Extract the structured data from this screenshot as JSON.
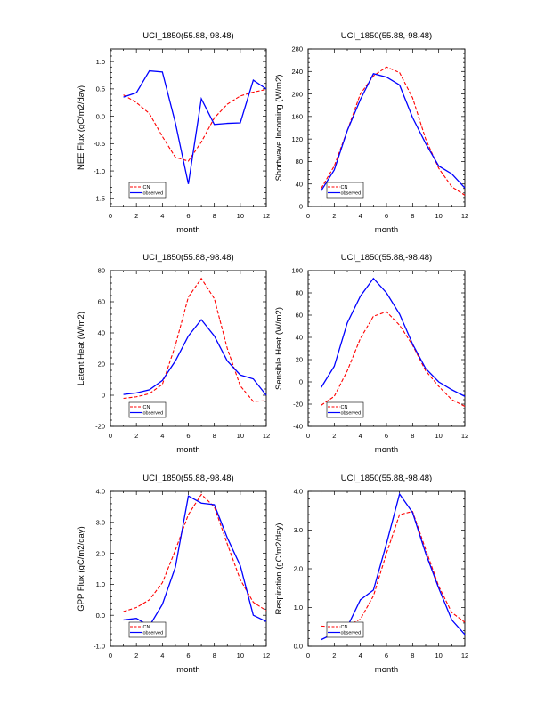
{
  "chart_data": [
    {
      "type": "line",
      "title": "UCI_1850(55.88,-98.48)",
      "xlabel": "month",
      "ylabel": "NEE Flux (gC/m2/day)",
      "xlim": [
        0,
        12
      ],
      "ylim": [
        -1.65,
        1.23
      ],
      "xticks": [
        0,
        2,
        4,
        6,
        8,
        10,
        12
      ],
      "xtick_labels": [
        "0",
        "2",
        "4",
        "6",
        "8",
        "10",
        "12"
      ],
      "yticks": [
        -1.5,
        -1.0,
        -0.5,
        0.0,
        0.5,
        1.0
      ],
      "ytick_labels": [
        "-1.5",
        "-1.0",
        "-0.5",
        "0.0",
        "0.5",
        "1.0"
      ],
      "legend": "bottom-left",
      "x": [
        1,
        2,
        3,
        4,
        5,
        6,
        7,
        8,
        9,
        10,
        11,
        12
      ],
      "series": [
        {
          "name": "CN",
          "color": "#ff0000",
          "dash": true,
          "values": [
            0.39,
            0.25,
            0.05,
            -0.37,
            -0.75,
            -0.82,
            -0.47,
            -0.03,
            0.22,
            0.37,
            0.44,
            0.49
          ]
        },
        {
          "name": "observed",
          "color": "#0000ff",
          "dash": false,
          "values": [
            0.35,
            0.43,
            0.83,
            0.81,
            -0.12,
            -1.24,
            0.32,
            -0.15,
            -0.13,
            -0.12,
            0.66,
            0.5
          ]
        }
      ]
    },
    {
      "type": "line",
      "title": "UCI_1850(55.88,-98.48)",
      "xlabel": "month",
      "ylabel": "Shortwave Incoming (W/m2)",
      "xlim": [
        0,
        12
      ],
      "ylim": [
        0,
        280
      ],
      "xticks": [
        0,
        2,
        4,
        6,
        8,
        10,
        12
      ],
      "xtick_labels": [
        "0",
        "2",
        "4",
        "6",
        "8",
        "10",
        "12"
      ],
      "yticks": [
        0,
        40,
        80,
        120,
        160,
        200,
        240,
        280
      ],
      "ytick_labels": [
        "0",
        "40",
        "80",
        "120",
        "160",
        "200",
        "240",
        "280"
      ],
      "legend": "bottom-left",
      "x": [
        1,
        2,
        3,
        4,
        5,
        6,
        7,
        8,
        9,
        10,
        11,
        12
      ],
      "series": [
        {
          "name": "CN",
          "color": "#ff0000",
          "dash": true,
          "values": [
            32,
            72,
            135,
            200,
            232,
            248,
            238,
            193,
            120,
            68,
            35,
            20
          ]
        },
        {
          "name": "observed",
          "color": "#0000ff",
          "dash": false,
          "values": [
            28,
            65,
            135,
            190,
            236,
            230,
            216,
            158,
            112,
            72,
            58,
            33
          ]
        }
      ]
    },
    {
      "type": "line",
      "title": "UCI_1850(55.88,-98.48)",
      "xlabel": "month",
      "ylabel": "Latent Heat (W/m2)",
      "xlim": [
        0,
        12
      ],
      "ylim": [
        -20,
        80
      ],
      "xticks": [
        0,
        2,
        4,
        6,
        8,
        10,
        12
      ],
      "xtick_labels": [
        "0",
        "2",
        "4",
        "6",
        "8",
        "10",
        "12"
      ],
      "yticks": [
        -20,
        0,
        20,
        40,
        60,
        80
      ],
      "ytick_labels": [
        "-20",
        "0",
        "20",
        "40",
        "60",
        "80"
      ],
      "legend": "bottom-left",
      "x": [
        1,
        2,
        3,
        4,
        5,
        6,
        7,
        8,
        9,
        10,
        11,
        12
      ],
      "series": [
        {
          "name": "CN",
          "color": "#ff0000",
          "dash": true,
          "values": [
            -2,
            -1,
            1,
            7,
            32,
            63,
            75,
            62,
            30,
            6,
            -4,
            -3.5
          ]
        },
        {
          "name": "observed",
          "color": "#0000ff",
          "dash": false,
          "values": [
            0.5,
            1.5,
            3.5,
            9.5,
            22,
            38,
            48.5,
            38,
            22,
            13,
            10.5,
            0
          ]
        }
      ]
    },
    {
      "type": "line",
      "title": "UCI_1850(55.88,-98.48)",
      "xlabel": "month",
      "ylabel": "Sensible Heat (W/m2)",
      "xlim": [
        0,
        12
      ],
      "ylim": [
        -40,
        100
      ],
      "xticks": [
        0,
        2,
        4,
        6,
        8,
        10,
        12
      ],
      "xtick_labels": [
        "0",
        "2",
        "4",
        "6",
        "8",
        "10",
        "12"
      ],
      "yticks": [
        -40,
        -20,
        0,
        20,
        40,
        60,
        80,
        100
      ],
      "ytick_labels": [
        "-40",
        "-20",
        "0",
        "20",
        "40",
        "60",
        "80",
        "100"
      ],
      "legend": "bottom-left",
      "x": [
        1,
        2,
        3,
        4,
        5,
        6,
        7,
        8,
        9,
        10,
        11,
        12
      ],
      "series": [
        {
          "name": "CN",
          "color": "#ff0000",
          "dash": true,
          "values": [
            -21,
            -13,
            10,
            39,
            59,
            63,
            51,
            33,
            10,
            -4,
            -16,
            -22
          ]
        },
        {
          "name": "observed",
          "color": "#0000ff",
          "dash": false,
          "values": [
            -5,
            14,
            53,
            77,
            93,
            80,
            61,
            34,
            12,
            0,
            -7,
            -13
          ]
        }
      ]
    },
    {
      "type": "line",
      "title": "UCI_1850(55.88,-98.48)",
      "xlabel": "month",
      "ylabel": "GPP Flux (gC/m2/day)",
      "xlim": [
        0,
        12
      ],
      "ylim": [
        -1.0,
        4.0
      ],
      "xticks": [
        0,
        2,
        4,
        6,
        8,
        10,
        12
      ],
      "xtick_labels": [
        "0",
        "2",
        "4",
        "6",
        "8",
        "10",
        "12"
      ],
      "yticks": [
        -1.0,
        0.0,
        1.0,
        2.0,
        3.0,
        4.0
      ],
      "ytick_labels": [
        "-1.0",
        "0.0",
        "1.0",
        "2.0",
        "3.0",
        "4.0"
      ],
      "legend": "bottom-left",
      "x": [
        1,
        2,
        3,
        4,
        5,
        6,
        7,
        8,
        9,
        10,
        11,
        12
      ],
      "series": [
        {
          "name": "CN",
          "color": "#ff0000",
          "dash": true,
          "values": [
            0.12,
            0.25,
            0.5,
            1.05,
            2.1,
            3.25,
            3.9,
            3.5,
            2.3,
            1.15,
            0.42,
            0.15
          ]
        },
        {
          "name": "observed",
          "color": "#0000ff",
          "dash": false,
          "values": [
            -0.15,
            -0.1,
            -0.35,
            0.35,
            1.55,
            3.85,
            3.62,
            3.57,
            2.5,
            1.6,
            0.0,
            -0.2
          ]
        }
      ]
    },
    {
      "type": "line",
      "title": "UCI_1850(55.88,-98.48)",
      "xlabel": "month",
      "ylabel": "Respiration (gC/m2/day)",
      "xlim": [
        0,
        12
      ],
      "ylim": [
        0.0,
        4.0
      ],
      "xticks": [
        0,
        2,
        4,
        6,
        8,
        10,
        12
      ],
      "xtick_labels": [
        "0",
        "2",
        "4",
        "6",
        "8",
        "10",
        "12"
      ],
      "yticks": [
        0.0,
        1.0,
        2.0,
        3.0,
        4.0
      ],
      "ytick_labels": [
        "0.0",
        "1.0",
        "2.0",
        "3.0",
        "4.0"
      ],
      "legend": "bottom-left",
      "x": [
        1,
        2,
        3,
        4,
        5,
        6,
        7,
        8,
        9,
        10,
        11,
        12
      ],
      "series": [
        {
          "name": "CN",
          "color": "#ff0000",
          "dash": true,
          "values": [
            0.52,
            0.5,
            0.52,
            0.7,
            1.3,
            2.4,
            3.4,
            3.48,
            2.5,
            1.55,
            0.87,
            0.62
          ]
        },
        {
          "name": "observed",
          "color": "#0000ff",
          "dash": false,
          "values": [
            0.17,
            0.33,
            0.5,
            1.2,
            1.45,
            2.65,
            3.93,
            3.45,
            2.4,
            1.5,
            0.68,
            0.3
          ]
        }
      ]
    }
  ]
}
